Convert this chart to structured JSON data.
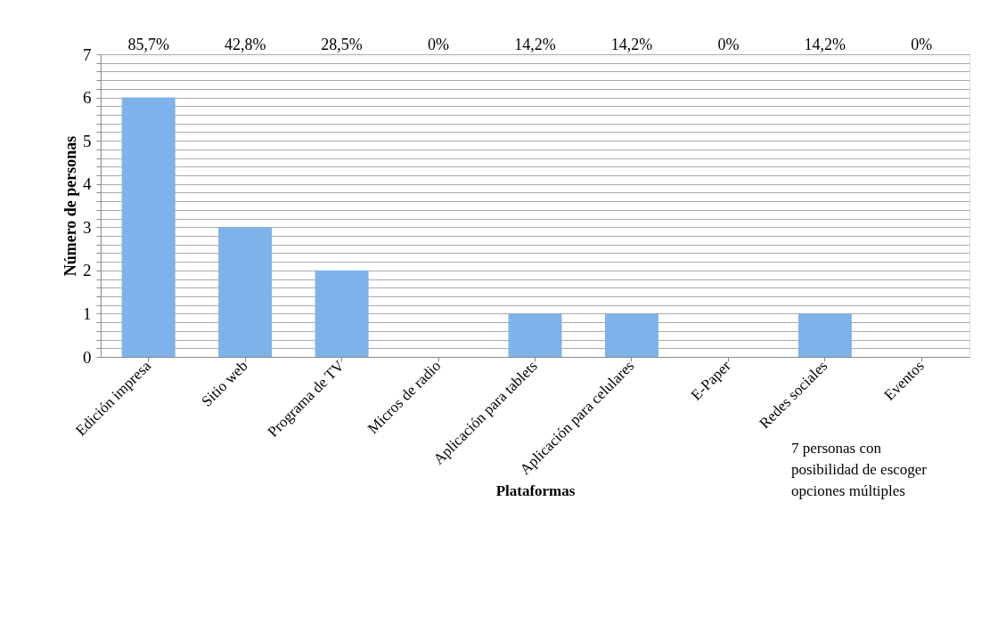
{
  "chart_data": {
    "type": "bar",
    "xlabel": "Plataformas",
    "ylabel": "Número de personas",
    "categories": [
      "Edición impresa",
      "Sitio web",
      "Programa de TV",
      "Micros de radio",
      "Aplicación para tablets",
      "Aplicación para celulares",
      "E-Paper",
      "Redes sociales",
      "Eventos"
    ],
    "values": [
      6,
      3,
      2,
      0,
      1,
      1,
      0,
      1,
      0
    ],
    "color": "#7fb2ea",
    "ylim": [
      0,
      7
    ],
    "yticks": [
      0,
      {
        "value": 0.2,
        "label": null
      },
      {
        "value": 0.4,
        "label": null
      },
      {
        "value": 0.6,
        "label": null
      },
      {
        "value": 0.8,
        "label": null
      },
      1,
      {
        "value": 1.2,
        "label": null
      },
      {
        "value": 1.4,
        "label": null
      },
      {
        "value": 1.6,
        "label": null
      },
      {
        "value": 1.8,
        "label": null
      },
      2,
      {
        "value": 2.2,
        "label": null
      },
      {
        "value": 2.4,
        "label": null
      },
      {
        "value": 2.6,
        "label": null
      },
      {
        "value": 2.8,
        "label": null
      },
      3,
      {
        "value": 3.2,
        "label": null
      },
      {
        "value": 3.4,
        "label": null
      },
      {
        "value": 3.6,
        "label": null
      },
      {
        "value": 3.8,
        "label": null
      },
      4,
      {
        "value": 4.2,
        "label": null
      },
      {
        "value": 4.4,
        "label": null
      },
      {
        "value": 4.6,
        "label": null
      },
      {
        "value": 4.8,
        "label": null
      },
      5,
      {
        "value": 5.2,
        "label": null
      },
      {
        "value": 5.4,
        "label": null
      },
      {
        "value": 5.6,
        "label": null
      },
      {
        "value": 5.8,
        "label": null
      },
      6,
      {
        "value": 6.2,
        "label": null
      },
      {
        "value": 6.4,
        "label": null
      },
      {
        "value": 6.6,
        "label": null
      },
      {
        "value": 6.8,
        "label": null
      },
      7
    ],
    "grid": "y",
    "annotations": [
      "85,7%",
      "42,8%",
      "28,5%",
      "0%",
      "14,2%",
      "14,2%",
      "0%",
      "14,2%",
      "0%",
      "7 personas con posibilidad de escoger opciones múltiples"
    ]
  }
}
